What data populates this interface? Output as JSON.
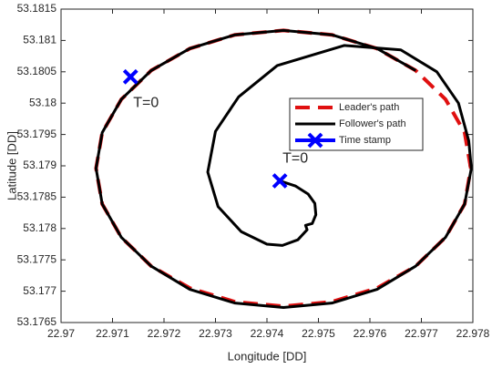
{
  "chart_data": {
    "type": "line",
    "xlabel": "Longitude [DD]",
    "ylabel": "Latitude [DD]",
    "xlim": [
      22.97,
      22.978
    ],
    "xticks": [
      22.97,
      22.971,
      22.972,
      22.973,
      22.974,
      22.975,
      22.976,
      22.977,
      22.978
    ],
    "ylim": [
      53.1765,
      53.1815
    ],
    "yticks": [
      53.1765,
      53.177,
      53.1775,
      53.178,
      53.1785,
      53.179,
      53.1795,
      53.18,
      53.1805,
      53.181,
      53.1815
    ],
    "grid": false,
    "legend": "east",
    "series": [
      {
        "name": "Leader's path",
        "color": "#e01010",
        "line_style": "dashed",
        "marker": "none",
        "x": [
          22.97796,
          22.97784,
          22.97747,
          22.97689,
          22.97614,
          22.97526,
          22.97432,
          22.97338,
          22.9725,
          22.97175,
          22.97117,
          22.9708,
          22.97068,
          22.9708,
          22.97117,
          22.97175,
          22.9725,
          22.97338,
          22.97432,
          22.97526,
          22.97614,
          22.97689,
          22.97747,
          22.97784,
          22.97796
        ],
        "y": [
          53.17896,
          53.17953,
          53.18006,
          53.18052,
          53.18087,
          53.18109,
          53.18116,
          53.18109,
          53.18087,
          53.18052,
          53.18006,
          53.17953,
          53.17896,
          53.17839,
          53.17786,
          53.1774,
          53.17705,
          53.17683,
          53.17676,
          53.17683,
          53.17705,
          53.1774,
          53.17786,
          53.17839,
          53.17896
        ]
      },
      {
        "name": "Follower's path",
        "color": "#000000",
        "line_style": "solid",
        "marker": "none",
        "x": [
          22.97425,
          22.97455,
          22.9748,
          22.97493,
          22.97495,
          22.97488,
          22.97475,
          22.97478,
          22.9746,
          22.9743,
          22.974,
          22.9735,
          22.97305,
          22.97285,
          22.973,
          22.97345,
          22.9742,
          22.9755,
          22.9766,
          22.9773,
          22.97772,
          22.97792,
          22.97797,
          22.97784,
          22.97747,
          22.97689,
          22.97614,
          22.97526,
          22.97432,
          22.97338,
          22.9725,
          22.97175,
          22.97117,
          22.9708,
          22.97068,
          22.9708,
          22.97117,
          22.97175,
          22.9725,
          22.97338,
          22.97432,
          22.97526,
          22.97614,
          22.97689
        ],
        "y": [
          53.17876,
          53.17868,
          53.17855,
          53.1784,
          53.17822,
          53.17808,
          53.17805,
          53.17798,
          53.17782,
          53.17773,
          53.17775,
          53.17795,
          53.17835,
          53.1789,
          53.17955,
          53.1801,
          53.1806,
          53.18092,
          53.18085,
          53.1805,
          53.18,
          53.1794,
          53.17896,
          53.17839,
          53.17786,
          53.1774,
          53.17703,
          53.17681,
          53.17674,
          53.17681,
          53.17703,
          53.1774,
          53.17786,
          53.17839,
          53.17896,
          53.17953,
          53.18006,
          53.18052,
          53.18087,
          53.18109,
          53.18116,
          53.18109,
          53.18087,
          53.18052
        ]
      },
      {
        "name": "Time stamp",
        "color": "#0000ff",
        "line_style": "none",
        "marker": "x",
        "x": [
          22.97135,
          22.97425
        ],
        "y": [
          53.18042,
          53.17876
        ]
      }
    ],
    "annotations": [
      {
        "text": "T=0",
        "x": 22.97135,
        "y": 53.18042
      },
      {
        "text": "T=0",
        "x": 22.97425,
        "y": 53.17876
      }
    ]
  }
}
